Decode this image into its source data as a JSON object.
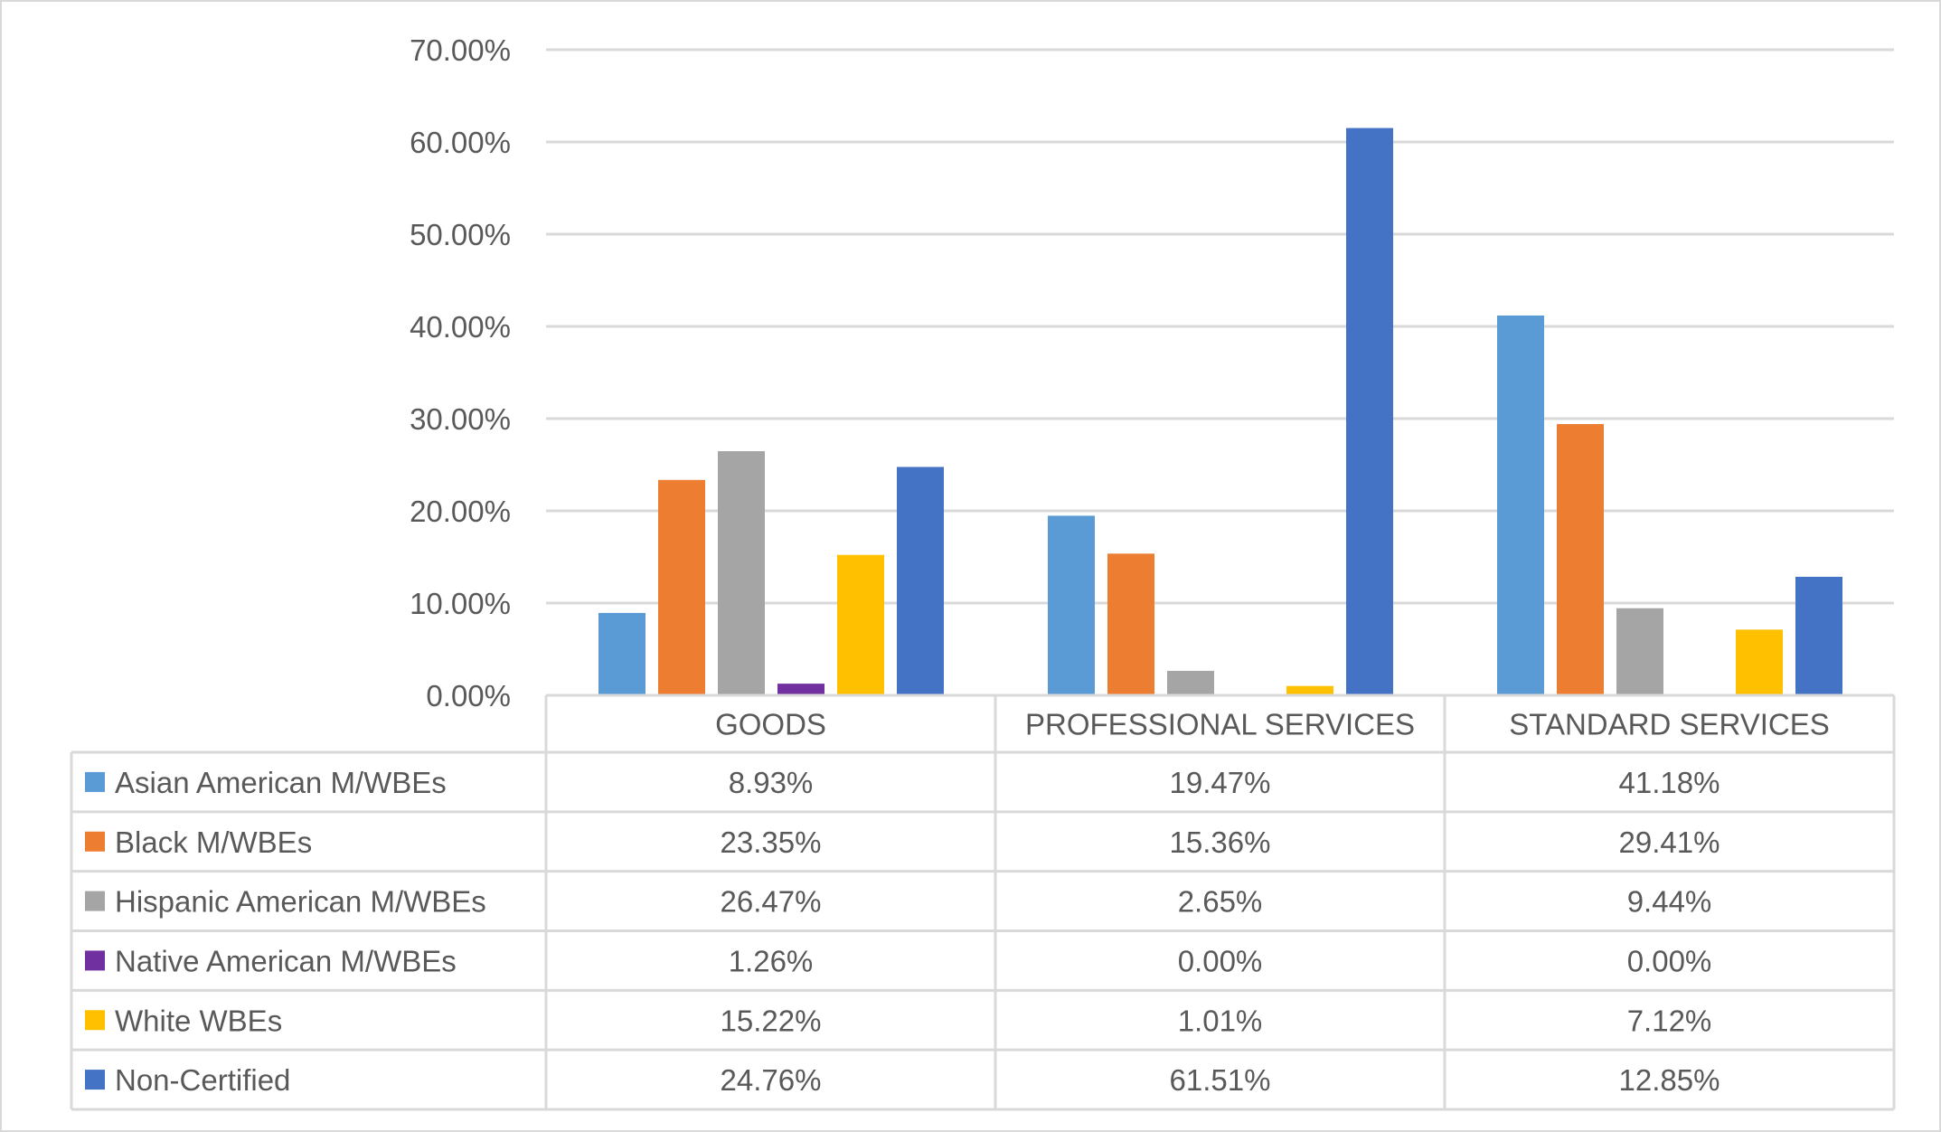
{
  "chart_data": {
    "type": "bar",
    "title": "",
    "xlabel": "",
    "ylabel": "",
    "ylim": [
      0,
      70
    ],
    "y_ticks": [
      "0.00%",
      "10.00%",
      "20.00%",
      "30.00%",
      "40.00%",
      "50.00%",
      "60.00%",
      "70.00%"
    ],
    "y_tick_values": [
      0,
      10,
      20,
      30,
      40,
      50,
      60,
      70
    ],
    "grid": true,
    "legend_placement": "data-table-bottom",
    "categories": [
      "GOODS",
      "PROFESSIONAL SERVICES",
      "STANDARD SERVICES"
    ],
    "series": [
      {
        "name": "Asian American M/WBEs",
        "color": "#5B9BD5",
        "values": [
          8.93,
          19.47,
          41.18
        ],
        "labels": [
          "8.93%",
          "19.47%",
          "41.18%"
        ]
      },
      {
        "name": "Black M/WBEs",
        "color": "#ED7D31",
        "values": [
          23.35,
          15.36,
          29.41
        ],
        "labels": [
          "23.35%",
          "15.36%",
          "29.41%"
        ]
      },
      {
        "name": "Hispanic American M/WBEs",
        "color": "#A5A5A5",
        "values": [
          26.47,
          2.65,
          9.44
        ],
        "labels": [
          "26.47%",
          "2.65%",
          "9.44%"
        ]
      },
      {
        "name": "Native American M/WBEs",
        "color": "#7030A0",
        "values": [
          1.26,
          0.0,
          0.0
        ],
        "labels": [
          "1.26%",
          "0.00%",
          "0.00%"
        ]
      },
      {
        "name": "White WBEs",
        "color": "#FFC000",
        "values": [
          15.22,
          1.01,
          7.12
        ],
        "labels": [
          "15.22%",
          "1.01%",
          "7.12%"
        ]
      },
      {
        "name": "Non-Certified",
        "color": "#4472C4",
        "values": [
          24.76,
          61.51,
          12.85
        ],
        "labels": [
          "24.76%",
          "61.51%",
          "12.85%"
        ]
      }
    ]
  },
  "style": {
    "grid_color": "#D9D9D9",
    "text_color": "#595959"
  }
}
